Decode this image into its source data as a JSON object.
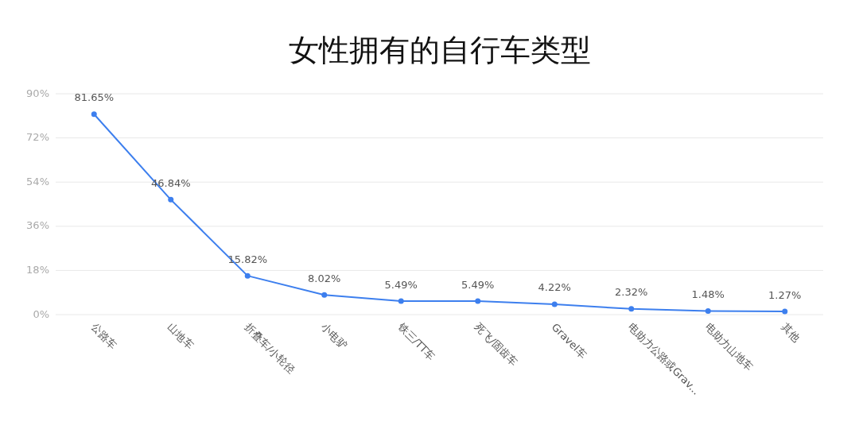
{
  "chart_data": {
    "type": "line",
    "title": "女性拥有的自行车类型",
    "categories": [
      "公路车",
      "山地车",
      "折叠车/小轮径",
      "小电驴",
      "铁三/TT车",
      "死飞/固齿车",
      "Gravel车",
      "电助力公路或Grav...",
      "电助力山地车",
      "其他"
    ],
    "values": [
      81.65,
      46.84,
      15.82,
      8.02,
      5.49,
      5.49,
      4.22,
      2.32,
      1.48,
      1.27
    ],
    "value_labels": [
      "81.65%",
      "46.84%",
      "15.82%",
      "8.02%",
      "5.49%",
      "5.49%",
      "4.22%",
      "2.32%",
      "1.48%",
      "1.27%"
    ],
    "color": "#3d7fee",
    "ylim": [
      0,
      90
    ],
    "yticks": [
      {
        "value": 0,
        "label": "0%"
      },
      {
        "value": 18,
        "label": "18%"
      },
      {
        "value": 36,
        "label": "36%"
      },
      {
        "value": 54,
        "label": "54%"
      },
      {
        "value": 72,
        "label": "72%"
      },
      {
        "value": 90,
        "label": "90%"
      }
    ],
    "grid": "y",
    "marker": "circle",
    "line_style": "solid"
  }
}
